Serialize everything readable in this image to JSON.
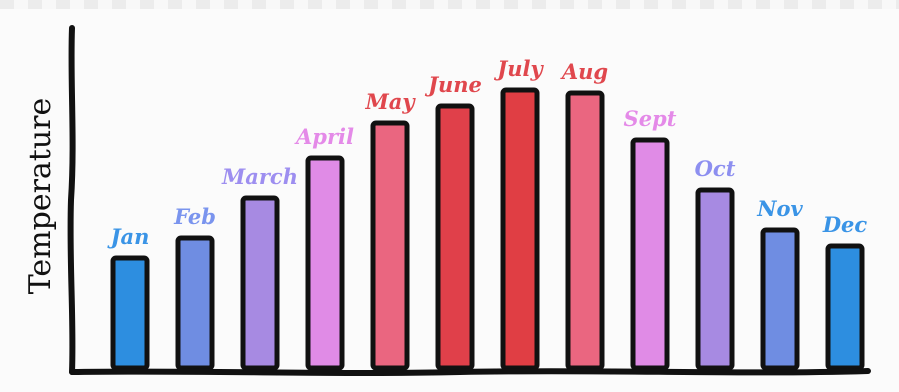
{
  "chart_data": {
    "type": "bar",
    "title": "",
    "xlabel": "",
    "ylabel": "Temperature",
    "categories": [
      "Jan",
      "Feb",
      "March",
      "April",
      "May",
      "June",
      "July",
      "Aug",
      "Sept",
      "Oct",
      "Nov",
      "Dec"
    ],
    "values": [
      110,
      130,
      170,
      210,
      245,
      262,
      278,
      275,
      228,
      178,
      138,
      122
    ],
    "ylim": [
      0,
      300
    ],
    "grid": false,
    "legend": "none",
    "colors": [
      "#2d8ee0",
      "#6f8de2",
      "#a78ae2",
      "#e08be6",
      "#ea6680",
      "#e0404a",
      "#e03e44",
      "#ea6680",
      "#e08be6",
      "#a78ae2",
      "#6f8de2",
      "#2d8ee0"
    ],
    "label_colors": [
      "#3a94e6",
      "#7a94ee",
      "#9d8ef0",
      "#e48ae8",
      "#e0474d",
      "#e0474d",
      "#e0474d",
      "#e0474d",
      "#e48ae8",
      "#8d8ff0",
      "#3a94e6",
      "#3a94e6"
    ]
  }
}
